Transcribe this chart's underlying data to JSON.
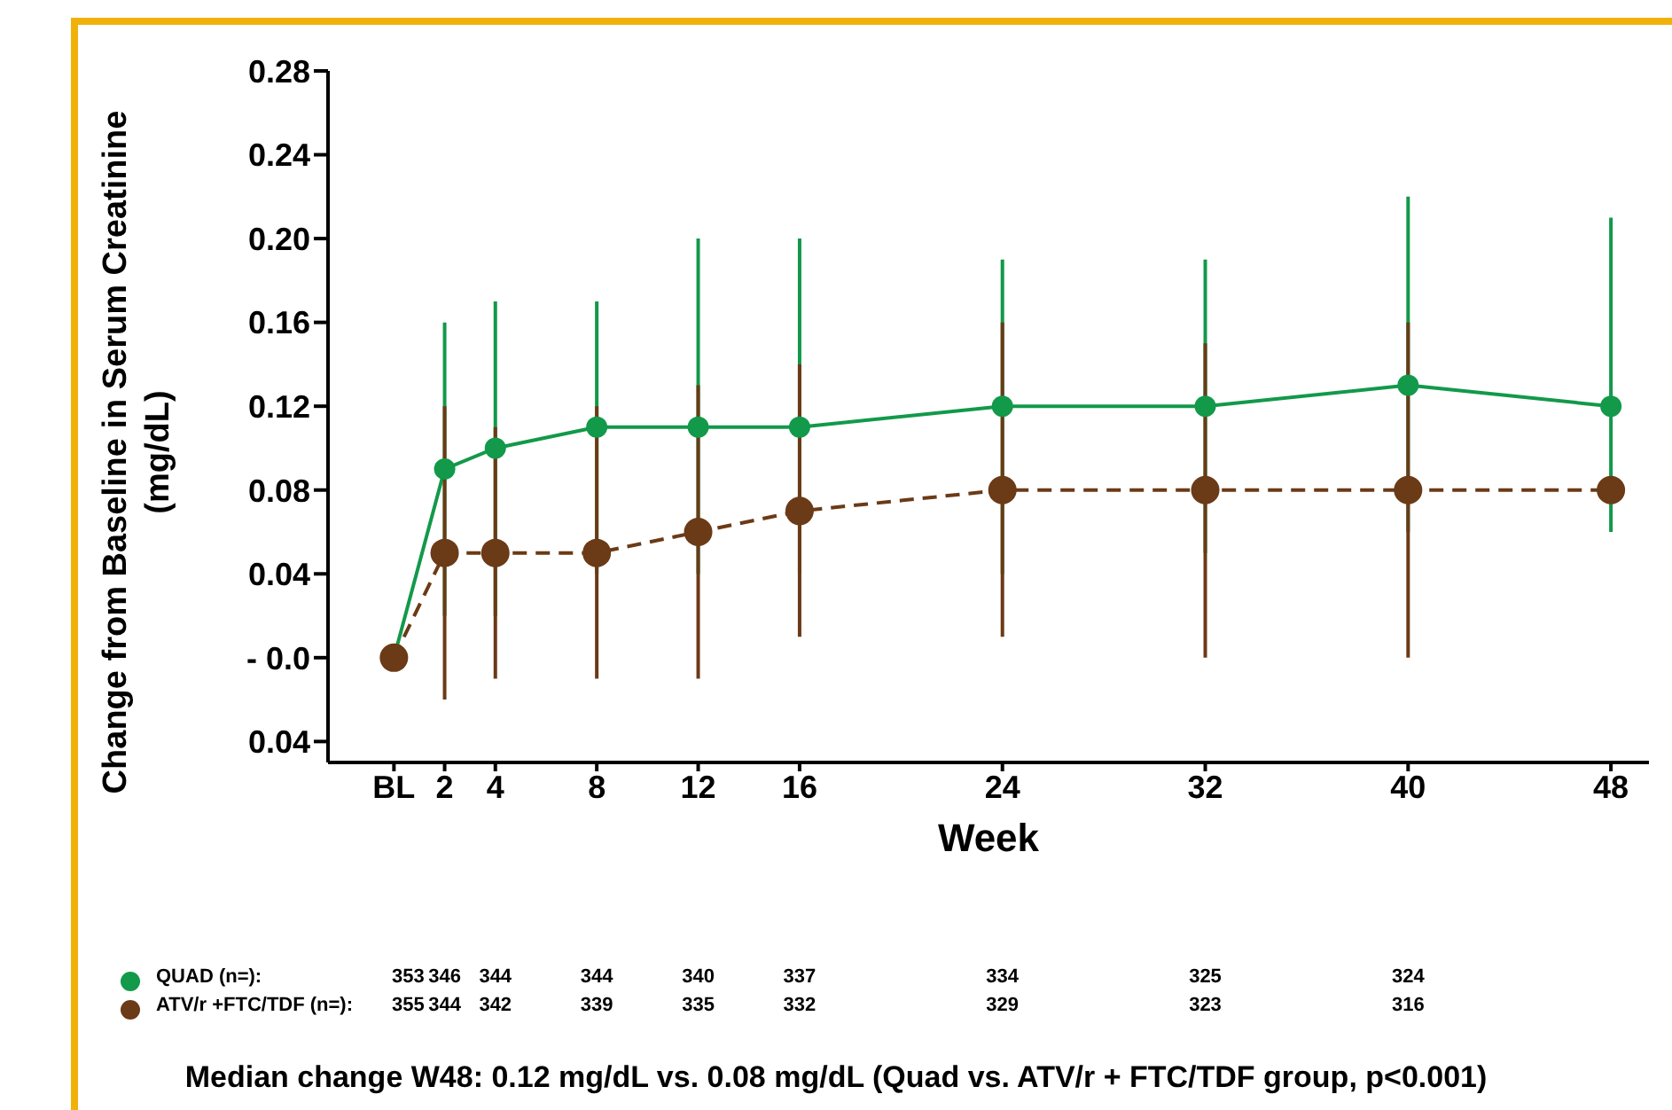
{
  "chart_data": {
    "type": "line",
    "ylabel": "Change from Baseline in Serum Creatinine\n(mg/dL)",
    "xlabel": "Week",
    "x": [
      0,
      2,
      4,
      8,
      12,
      16,
      24,
      32,
      40,
      48
    ],
    "xlim": [
      -2.6,
      49.5
    ],
    "xticks": [
      {
        "value": 0,
        "label": "BL"
      },
      2,
      4,
      8,
      12,
      16,
      24,
      32,
      40,
      48
    ],
    "ylim": [
      -0.05,
      0.28
    ],
    "yticks": [
      {
        "value": -0.04,
        "label": "0.04"
      },
      {
        "value": 0,
        "label": "- 0.0"
      },
      0.04,
      0.08,
      0.12,
      0.16,
      {
        "value": 0.2,
        "label": "0.20"
      },
      0.24,
      0.28
    ],
    "marker": "circle",
    "grid": false,
    "legend": "bottom",
    "series": [
      {
        "name": "QUAD (n=):",
        "color": "#12994a",
        "line_style": "solid",
        "values": [
          0,
          0.09,
          0.1,
          0.11,
          0.11,
          0.11,
          0.12,
          0.12,
          0.13,
          0.12
        ],
        "errors": [
          null,
          [
            0.02,
            0.16
          ],
          [
            0.02,
            0.17
          ],
          [
            0.04,
            0.17
          ],
          [
            0.04,
            0.2
          ],
          [
            0.04,
            0.2
          ],
          [
            0.04,
            0.19
          ],
          [
            0.05,
            0.19
          ],
          [
            0.06,
            0.22
          ],
          [
            0.06,
            0.21
          ]
        ]
      },
      {
        "name": "ATV/r +FTC/TDF (n=):",
        "color": "#6b3a16",
        "line_style": "dashed",
        "values": [
          0,
          0.05,
          0.05,
          0.05,
          0.06,
          0.07,
          0.08,
          0.08,
          0.08,
          0.08
        ],
        "errors": [
          null,
          [
            -0.02,
            0.12
          ],
          [
            -0.01,
            0.11
          ],
          [
            -0.01,
            0.12
          ],
          [
            -0.01,
            0.13
          ],
          [
            0.01,
            0.14
          ],
          [
            0.01,
            0.16
          ],
          [
            0,
            0.15
          ],
          [
            0,
            0.16
          ],
          null
        ]
      }
    ],
    "annotations": [
      "353",
      "346",
      "344",
      "344",
      "340",
      "337",
      "334",
      "325",
      "324",
      "355",
      "344",
      "342",
      "339",
      "335",
      "332",
      "329",
      "323",
      "316",
      "Median change W48:  0.12 mg/dL vs. 0.08 mg/dL (Quad vs. ATV/r + FTC/TDF group, p<0.001)"
    ]
  }
}
